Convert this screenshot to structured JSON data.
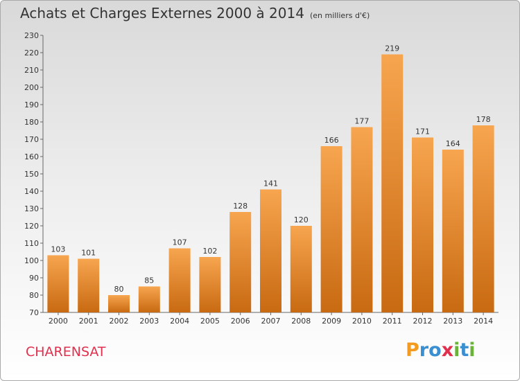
{
  "header": {
    "title": "Achats et Charges Externes 2000 à 2014",
    "subtitle": "(en milliers d'€)"
  },
  "location": "CHARENSAT",
  "logo": {
    "letters": [
      "P",
      "r",
      "o",
      "x",
      "i",
      "t",
      "i"
    ],
    "colors": [
      "#f39b1e",
      "#3a8fd0",
      "#3a8fd0",
      "#e0304e",
      "#6bb23a",
      "#3a8fd0",
      "#6bb23a"
    ]
  },
  "colors": {
    "bar_light": "#f7a54f",
    "bar_dark": "#c86a12"
  },
  "chart_data": {
    "type": "bar",
    "title": "Achats et Charges Externes 2000 à 2014",
    "subtitle": "(en milliers d'€)",
    "categories": [
      "2000",
      "2001",
      "2002",
      "2003",
      "2004",
      "2005",
      "2006",
      "2007",
      "2008",
      "2009",
      "2010",
      "2011",
      "2012",
      "2013",
      "2014"
    ],
    "values": [
      103,
      101,
      80,
      85,
      107,
      102,
      128,
      141,
      120,
      166,
      177,
      219,
      171,
      164,
      178
    ],
    "xlabel": "",
    "ylabel": "",
    "ylim": [
      70,
      230
    ],
    "yticks": [
      70,
      80,
      90,
      100,
      110,
      120,
      130,
      140,
      150,
      160,
      170,
      180,
      190,
      200,
      210,
      220,
      230
    ],
    "grid": false,
    "legend": "none"
  }
}
